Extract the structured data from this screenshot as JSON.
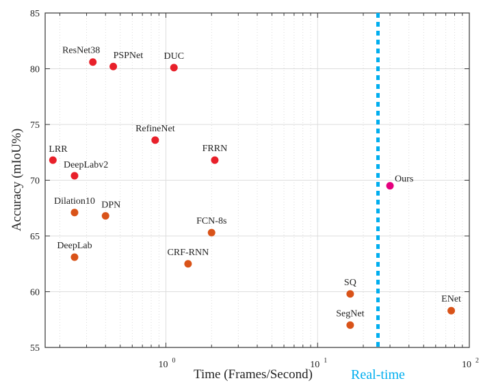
{
  "chart_data": {
    "type": "scatter",
    "xlabel": "Time (Frames/Second)",
    "ylabel": "Accuracy (mIoU%)",
    "xscale": "log",
    "xlim": [
      0.16,
      100
    ],
    "ylim": [
      55,
      85
    ],
    "xticks": [
      {
        "value": 1,
        "label": "10",
        "exp": "0"
      },
      {
        "value": 10,
        "label": "10",
        "exp": "1"
      },
      {
        "value": 100,
        "label": "10",
        "exp": "2"
      }
    ],
    "yticks": [
      55,
      60,
      65,
      70,
      75,
      80,
      85
    ],
    "grid": true,
    "colors": {
      "red": "#e8202a",
      "orange": "#d95319",
      "magenta": "#e5007e",
      "realtime": "#00aeef"
    },
    "points": [
      {
        "name": "ResNet38",
        "x": 0.33,
        "y": 80.6,
        "color": "red",
        "label_pos": "above-left"
      },
      {
        "name": "PSPNet",
        "x": 0.45,
        "y": 80.2,
        "color": "red",
        "label_pos": "above-right"
      },
      {
        "name": "DUC",
        "x": 1.13,
        "y": 80.1,
        "color": "red",
        "label_pos": "above"
      },
      {
        "name": "RefineNet",
        "x": 0.85,
        "y": 73.6,
        "color": "red",
        "label_pos": "above"
      },
      {
        "name": "LRR",
        "x": 0.18,
        "y": 71.8,
        "color": "red",
        "label_pos": "above-right"
      },
      {
        "name": "DeepLabv2",
        "x": 0.25,
        "y": 70.4,
        "color": "red",
        "label_pos": "above-right"
      },
      {
        "name": "FRRN",
        "x": 2.1,
        "y": 71.8,
        "color": "red",
        "label_pos": "above"
      },
      {
        "name": "Dilation10",
        "x": 0.25,
        "y": 67.1,
        "color": "orange",
        "label_pos": "above"
      },
      {
        "name": "DPN",
        "x": 0.4,
        "y": 66.8,
        "color": "orange",
        "label_pos": "above-right"
      },
      {
        "name": "FCN-8s",
        "x": 2.0,
        "y": 65.3,
        "color": "orange",
        "label_pos": "above"
      },
      {
        "name": "DeepLab",
        "x": 0.25,
        "y": 63.1,
        "color": "orange",
        "label_pos": "above"
      },
      {
        "name": "CRF-RNN",
        "x": 1.4,
        "y": 62.5,
        "color": "orange",
        "label_pos": "above"
      },
      {
        "name": "SQ",
        "x": 16.4,
        "y": 59.8,
        "color": "orange",
        "label_pos": "above"
      },
      {
        "name": "SegNet",
        "x": 16.4,
        "y": 57.0,
        "color": "orange",
        "label_pos": "above"
      },
      {
        "name": "ENet",
        "x": 76,
        "y": 58.3,
        "color": "orange",
        "label_pos": "above"
      },
      {
        "name": "Ours",
        "x": 30,
        "y": 69.5,
        "color": "magenta",
        "label_pos": "above-right"
      }
    ],
    "realtime_line": {
      "x": 25,
      "label": "Real-time"
    }
  }
}
